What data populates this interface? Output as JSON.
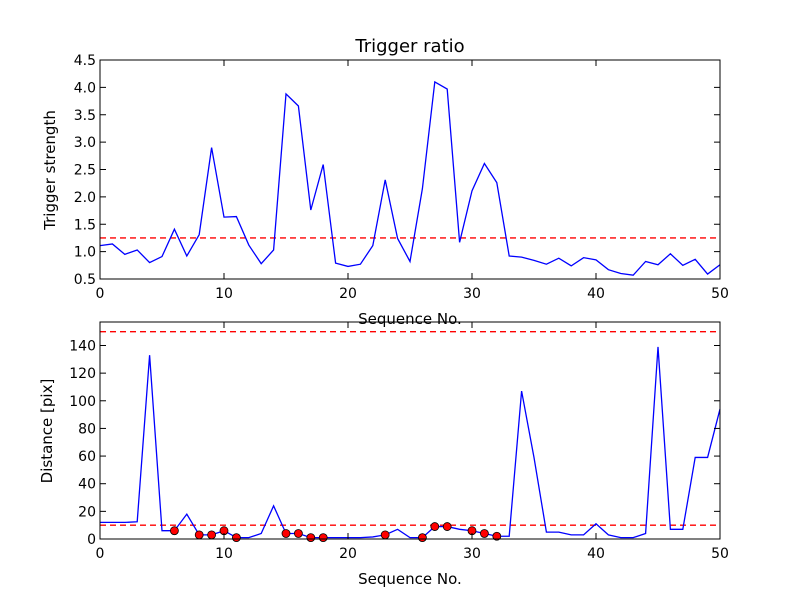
{
  "colors": {
    "line": "#0000ff",
    "threshold": "#ff0000",
    "marker_fill": "#ff0000",
    "marker_edge": "#000000",
    "axes": "#000000",
    "background": "#ffffff"
  },
  "chart_data": [
    {
      "type": "line",
      "title": "Trigger ratio",
      "xlabel": "Sequence No.",
      "ylabel": "Trigger strength",
      "xlim": [
        0,
        50
      ],
      "ylim": [
        0.5,
        4.5
      ],
      "xticks": [
        0,
        10,
        20,
        30,
        40,
        50
      ],
      "yticks": [
        0.5,
        1.0,
        1.5,
        2.0,
        2.5,
        3.0,
        3.5,
        4.0,
        4.5
      ],
      "xtick_labels": [
        "0",
        "10",
        "20",
        "30",
        "40",
        "50"
      ],
      "ytick_labels": [
        "0.5",
        "1.0",
        "1.5",
        "2.0",
        "2.5",
        "3.0",
        "3.5",
        "4.0",
        "4.5"
      ],
      "grid": false,
      "series": [
        {
          "style": "line",
          "x": [
            0,
            1,
            2,
            3,
            4,
            5,
            6,
            7,
            8,
            9,
            10,
            11,
            12,
            13,
            14,
            15,
            16,
            17,
            18,
            19,
            20,
            21,
            22,
            23,
            24,
            25,
            26,
            27,
            28,
            29,
            30,
            31,
            32,
            33,
            34,
            35,
            36,
            37,
            38,
            39,
            40,
            41,
            42,
            43,
            44,
            45,
            46,
            47,
            48,
            49,
            50
          ],
          "y": [
            1.11,
            1.14,
            0.95,
            1.03,
            0.8,
            0.91,
            1.41,
            0.92,
            1.31,
            2.9,
            1.63,
            1.64,
            1.12,
            0.78,
            1.03,
            3.88,
            3.66,
            1.76,
            2.59,
            0.79,
            0.73,
            0.77,
            1.11,
            2.31,
            1.24,
            0.82,
            2.15,
            4.1,
            3.97,
            1.17,
            2.11,
            2.61,
            2.26,
            0.92,
            0.9,
            0.84,
            0.77,
            0.88,
            0.74,
            0.89,
            0.85,
            0.67,
            0.6,
            0.57,
            0.82,
            0.76,
            0.96,
            0.75,
            0.86,
            0.59,
            0.76
          ]
        }
      ],
      "threshold": 1.25
    },
    {
      "type": "line",
      "title": "",
      "xlabel": "Sequence No.",
      "ylabel": "Distance [pix]",
      "xlim": [
        0,
        50
      ],
      "ylim": [
        0,
        157
      ],
      "xticks": [
        0,
        10,
        20,
        30,
        40,
        50
      ],
      "yticks": [
        0,
        20,
        40,
        60,
        80,
        100,
        120,
        140
      ],
      "xtick_labels": [
        "0",
        "10",
        "20",
        "30",
        "40",
        "50"
      ],
      "ytick_labels": [
        "0",
        "20",
        "40",
        "60",
        "80",
        "100",
        "120",
        "140"
      ],
      "grid": false,
      "series": [
        {
          "style": "line",
          "x": [
            0,
            1,
            2,
            3,
            4,
            5,
            6,
            7,
            8,
            9,
            10,
            11,
            12,
            13,
            14,
            15,
            16,
            17,
            18,
            19,
            20,
            21,
            22,
            23,
            24,
            25,
            26,
            27,
            28,
            29,
            30,
            31,
            32,
            33,
            34,
            35,
            36,
            37,
            38,
            39,
            40,
            41,
            42,
            43,
            44,
            45,
            46,
            47,
            48,
            49,
            50
          ],
          "y": [
            12,
            12,
            12,
            12.5,
            133,
            6,
            6,
            18,
            3,
            3,
            6,
            1,
            1,
            4,
            24,
            4,
            4,
            1,
            1,
            1,
            1,
            1,
            1.5,
            3,
            7,
            1,
            1,
            9,
            9,
            7,
            6,
            4,
            2,
            2,
            107,
            59,
            5,
            5,
            3,
            3,
            11,
            3,
            1,
            1,
            4,
            139,
            7,
            7,
            59,
            59,
            94
          ]
        },
        {
          "style": "markers",
          "x": [
            6,
            8,
            9,
            10,
            11,
            15,
            16,
            17,
            18,
            23,
            26,
            27,
            28,
            30,
            31,
            32
          ],
          "y": [
            6,
            3,
            3,
            6,
            1,
            4,
            4,
            1,
            1,
            3,
            1,
            9,
            9,
            6,
            4,
            2
          ]
        }
      ],
      "thresholds": [
        10,
        150
      ]
    }
  ]
}
